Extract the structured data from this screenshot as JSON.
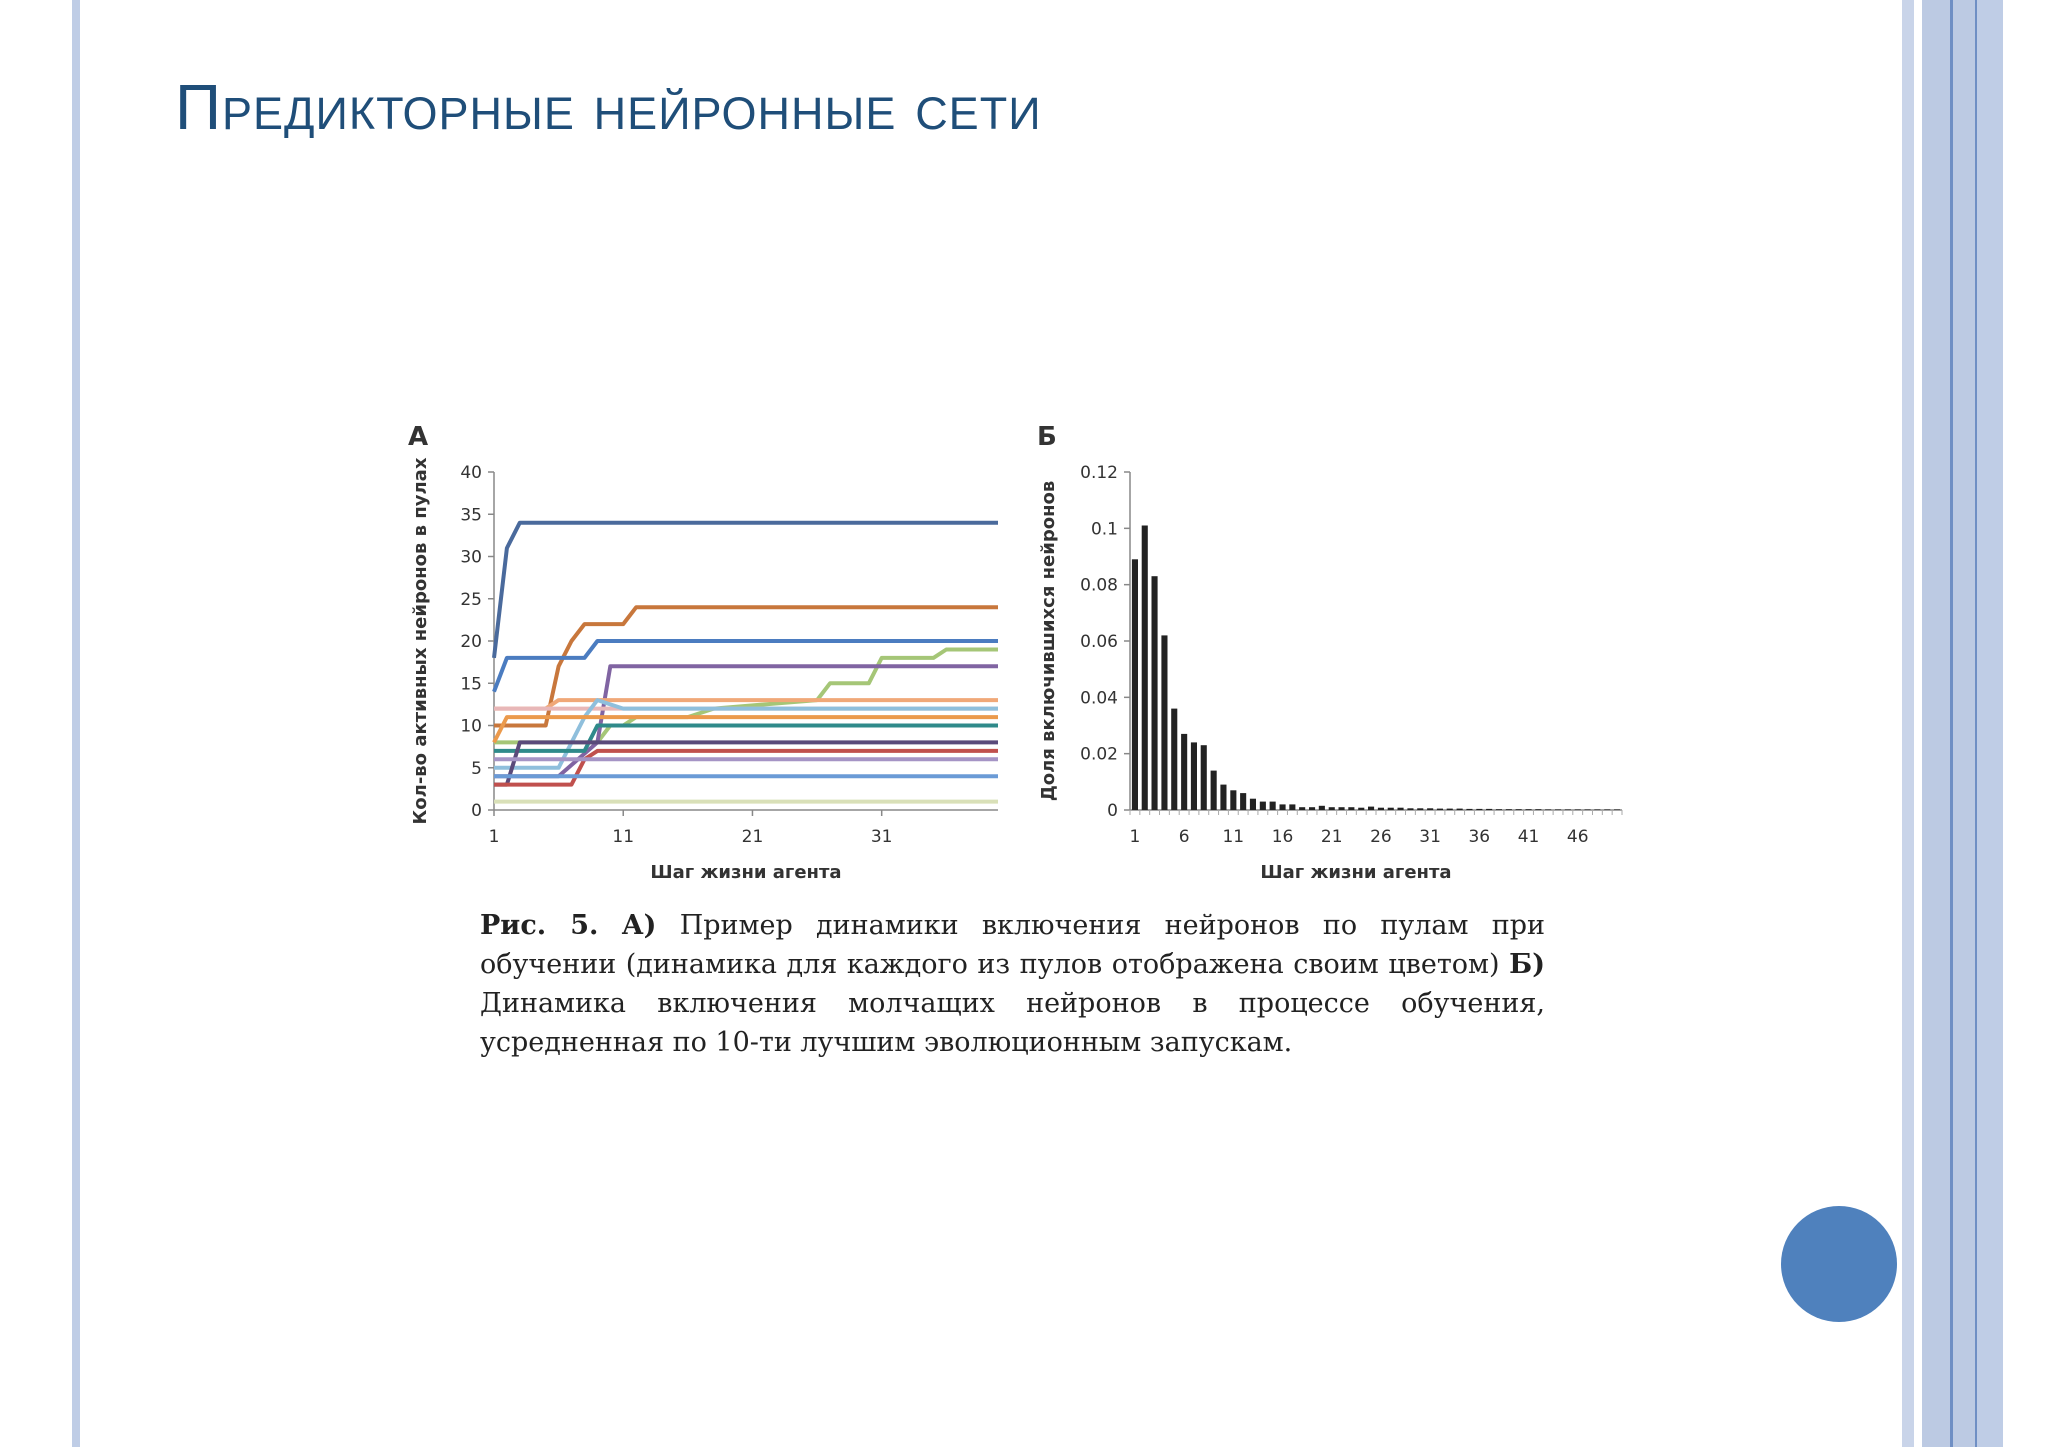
{
  "slide": {
    "title": "Предикторные нейронные сети"
  },
  "caption": {
    "fig": "Рис. 5.",
    "a_marker": "А)",
    "a_text": "Пример динамики включения нейронов по пулам при обучении (динамика для каждого из пулов отображена своим цветом)",
    "b_marker": "Б)",
    "b_text": "Динамика включения молчащих нейронов в процессе обучения, усредненная по 10-ти лучшим эволюционным запускам."
  },
  "colors": {
    "title": "#1f4e79",
    "accent_band": "#bfcde6",
    "nav_circle": "#4f81bd",
    "bars": "#222222"
  },
  "chart_data": [
    {
      "panel": "А",
      "type": "line",
      "xlabel": "Шаг жизни агента",
      "ylabel": "Кол-во активных нейронов в пулах",
      "xlim": [
        1,
        40
      ],
      "ylim": [
        0,
        40
      ],
      "xticks": [
        1,
        11,
        21,
        31
      ],
      "yticks": [
        0,
        5,
        10,
        15,
        20,
        25,
        30,
        35,
        40
      ],
      "series": [
        {
          "color": "#4a6a9c",
          "points": [
            [
              1,
              18
            ],
            [
              2,
              31
            ],
            [
              3,
              34
            ],
            [
              40,
              34
            ]
          ]
        },
        {
          "color": "#c8773c",
          "points": [
            [
              1,
              10
            ],
            [
              5,
              10
            ],
            [
              6,
              17
            ],
            [
              7,
              20
            ],
            [
              8,
              22
            ],
            [
              11,
              22
            ],
            [
              12,
              24
            ],
            [
              40,
              24
            ]
          ]
        },
        {
          "color": "#4b7cc0",
          "points": [
            [
              1,
              14
            ],
            [
              2,
              18
            ],
            [
              8,
              18
            ],
            [
              9,
              20
            ],
            [
              40,
              20
            ]
          ]
        },
        {
          "color": "#a5c677",
          "points": [
            [
              1,
              8
            ],
            [
              9,
              8
            ],
            [
              10,
              10
            ],
            [
              11,
              10
            ],
            [
              12,
              11
            ],
            [
              16,
              11
            ],
            [
              18,
              12
            ],
            [
              26,
              13
            ],
            [
              27,
              15
            ],
            [
              30,
              15
            ],
            [
              31,
              18
            ],
            [
              35,
              18
            ],
            [
              36,
              19
            ],
            [
              40,
              19
            ]
          ]
        },
        {
          "color": "#8064a2",
          "points": [
            [
              1,
              4
            ],
            [
              6,
              4
            ],
            [
              9,
              8
            ],
            [
              10,
              17
            ],
            [
              40,
              17
            ]
          ]
        },
        {
          "color": "#f0a878",
          "points": [
            [
              1,
              12
            ],
            [
              5,
              12
            ],
            [
              6,
              13
            ],
            [
              40,
              13
            ]
          ]
        },
        {
          "color": "#e8b7b8",
          "points": [
            [
              1,
              12
            ],
            [
              40,
              12
            ]
          ]
        },
        {
          "color": "#8fbfdc",
          "points": [
            [
              1,
              5
            ],
            [
              6,
              5
            ],
            [
              8,
              11
            ],
            [
              9,
              13
            ],
            [
              11,
              12
            ],
            [
              40,
              12
            ]
          ]
        },
        {
          "color": "#eb9a4c",
          "points": [
            [
              1,
              8
            ],
            [
              2,
              11
            ],
            [
              40,
              11
            ]
          ]
        },
        {
          "color": "#2f8a8a",
          "points": [
            [
              1,
              7
            ],
            [
              8,
              7
            ],
            [
              9,
              10
            ],
            [
              40,
              10
            ]
          ]
        },
        {
          "color": "#5a4a7a",
          "points": [
            [
              1,
              3
            ],
            [
              2,
              3
            ],
            [
              3,
              8
            ],
            [
              40,
              8
            ]
          ]
        },
        {
          "color": "#c0504d",
          "points": [
            [
              1,
              3
            ],
            [
              7,
              3
            ],
            [
              8,
              6
            ],
            [
              9,
              7
            ],
            [
              40,
              7
            ]
          ]
        },
        {
          "color": "#a594c5",
          "points": [
            [
              1,
              6
            ],
            [
              40,
              6
            ]
          ]
        },
        {
          "color": "#6b9bd6",
          "points": [
            [
              1,
              4
            ],
            [
              40,
              4
            ]
          ]
        },
        {
          "color": "#d9e0b8",
          "points": [
            [
              1,
              1
            ],
            [
              40,
              1
            ]
          ]
        }
      ]
    },
    {
      "panel": "Б",
      "type": "bar",
      "xlabel": "Шаг жизни агента",
      "ylabel": "Доля включившихся нейронов",
      "ylim": [
        0,
        0.12
      ],
      "yticks": [
        "0",
        "0.02",
        "0.04",
        "0.06",
        "0.08",
        "0.1",
        "0.12"
      ],
      "xticks": [
        1,
        6,
        11,
        16,
        21,
        26,
        31,
        36,
        41,
        46
      ],
      "x": [
        1,
        2,
        3,
        4,
        5,
        6,
        7,
        8,
        9,
        10,
        11,
        12,
        13,
        14,
        15,
        16,
        17,
        18,
        19,
        20,
        21,
        22,
        23,
        24,
        25,
        26,
        27,
        28,
        29,
        30,
        31,
        32,
        33,
        34,
        35,
        36,
        37,
        38,
        39,
        40,
        41,
        42,
        43,
        44,
        45,
        46,
        47,
        48,
        49,
        50
      ],
      "values": [
        0.089,
        0.101,
        0.083,
        0.062,
        0.036,
        0.027,
        0.024,
        0.023,
        0.014,
        0.009,
        0.007,
        0.006,
        0.004,
        0.003,
        0.003,
        0.002,
        0.002,
        0.001,
        0.001,
        0.0015,
        0.001,
        0.001,
        0.001,
        0.0008,
        0.0012,
        0.0008,
        0.0008,
        0.0008,
        0.0006,
        0.0006,
        0.0006,
        0.0005,
        0.0005,
        0.0005,
        0.0004,
        0.0004,
        0.0004,
        0.0003,
        0.0003,
        0.0003,
        0.0003,
        0.0003,
        0.0002,
        0.0002,
        0.0002,
        0.0002,
        0.0002,
        0.0002,
        0.0002,
        0.0002
      ]
    }
  ]
}
